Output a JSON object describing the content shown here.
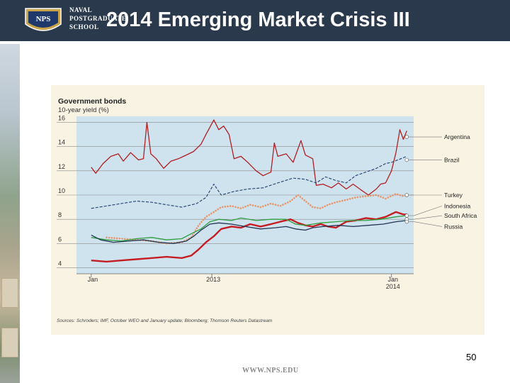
{
  "slide": {
    "title": "2014 Emerging Market Crisis III",
    "school_line1": "NAVAL",
    "school_line2": "POSTGRADUATE",
    "school_line3": "SCHOOL",
    "logo_text": "NPS",
    "page_number": "50",
    "footer_url": "WWW.NPS.EDU"
  },
  "chart_data": {
    "type": "line",
    "title": "Government bonds",
    "subtitle": "10-year yield (%)",
    "source": "Sources: Schroders; IMF, October WEO and January update; Bloomberg; Thomson Reuters Datastream",
    "x_tick_labels": [
      {
        "date": "2012-05-01",
        "label": "Jan",
        "label2": ""
      },
      {
        "date": "2013-01-01",
        "label": "2013",
        "label2": ""
      },
      {
        "date": "2014-01-01",
        "label": "Jan",
        "label2": "2014"
      }
    ],
    "xlim": [
      "2012-04-01",
      "2014-02-15"
    ],
    "ylim": [
      3.5,
      16.5
    ],
    "y_ticks": [
      4,
      6,
      8,
      10,
      12,
      14,
      16
    ],
    "grid": true,
    "colors": {
      "plot_bg": "#cfe3ee",
      "panel_bg": "#f8f3e3",
      "argentina": "#b01f24",
      "brazil": "#1f3f6e",
      "turkey": "#e8966a",
      "indonesia": "#c41e24",
      "south_africa": "#2e9e3e",
      "russia": "#1f3550"
    },
    "series": [
      {
        "name": "Argentina",
        "key": "argentina",
        "style": "solid",
        "width": 1.3,
        "points": [
          [
            "2012-05-01",
            12.3
          ],
          [
            "2012-05-10",
            11.8
          ],
          [
            "2012-05-25",
            12.6
          ],
          [
            "2012-06-10",
            13.2
          ],
          [
            "2012-06-25",
            13.4
          ],
          [
            "2012-07-05",
            12.8
          ],
          [
            "2012-07-20",
            13.5
          ],
          [
            "2012-08-05",
            12.9
          ],
          [
            "2012-08-15",
            13.0
          ],
          [
            "2012-08-22",
            16.0
          ],
          [
            "2012-08-30",
            13.4
          ],
          [
            "2012-09-10",
            13.0
          ],
          [
            "2012-09-25",
            12.2
          ],
          [
            "2012-10-10",
            12.8
          ],
          [
            "2012-10-25",
            13.0
          ],
          [
            "2012-11-10",
            13.3
          ],
          [
            "2012-11-25",
            13.6
          ],
          [
            "2012-12-10",
            14.2
          ],
          [
            "2012-12-20",
            15.0
          ],
          [
            "2012-12-28",
            15.6
          ],
          [
            "2013-01-05",
            16.2
          ],
          [
            "2013-01-15",
            15.4
          ],
          [
            "2013-01-25",
            15.7
          ],
          [
            "2013-02-05",
            15.0
          ],
          [
            "2013-02-15",
            13.0
          ],
          [
            "2013-03-01",
            13.2
          ],
          [
            "2013-03-15",
            12.7
          ],
          [
            "2013-04-01",
            12.0
          ],
          [
            "2013-04-15",
            11.6
          ],
          [
            "2013-05-01",
            11.9
          ],
          [
            "2013-05-08",
            14.3
          ],
          [
            "2013-05-15",
            13.2
          ],
          [
            "2013-06-01",
            13.4
          ],
          [
            "2013-06-15",
            12.7
          ],
          [
            "2013-07-01",
            14.5
          ],
          [
            "2013-07-10",
            13.3
          ],
          [
            "2013-07-25",
            13.0
          ],
          [
            "2013-08-01",
            10.8
          ],
          [
            "2013-08-15",
            10.9
          ],
          [
            "2013-09-01",
            10.6
          ],
          [
            "2013-09-15",
            11.0
          ],
          [
            "2013-10-01",
            10.5
          ],
          [
            "2013-10-15",
            10.9
          ],
          [
            "2013-11-01",
            10.4
          ],
          [
            "2013-11-15",
            10.0
          ],
          [
            "2013-12-01",
            10.5
          ],
          [
            "2013-12-10",
            10.9
          ],
          [
            "2013-12-20",
            11.0
          ],
          [
            "2014-01-01",
            12.0
          ],
          [
            "2014-01-10",
            13.5
          ],
          [
            "2014-01-18",
            15.4
          ],
          [
            "2014-01-25",
            14.6
          ],
          [
            "2014-02-01",
            15.3
          ]
        ]
      },
      {
        "name": "Brazil",
        "key": "brazil",
        "style": "dashed",
        "width": 1.1,
        "points": [
          [
            "2012-05-01",
            8.9
          ],
          [
            "2012-06-01",
            9.1
          ],
          [
            "2012-07-01",
            9.3
          ],
          [
            "2012-08-01",
            9.5
          ],
          [
            "2012-09-01",
            9.4
          ],
          [
            "2012-10-01",
            9.2
          ],
          [
            "2012-11-01",
            9.0
          ],
          [
            "2012-12-01",
            9.3
          ],
          [
            "2012-12-20",
            9.8
          ],
          [
            "2013-01-05",
            10.9
          ],
          [
            "2013-01-20",
            10.0
          ],
          [
            "2013-02-15",
            10.3
          ],
          [
            "2013-03-15",
            10.5
          ],
          [
            "2013-04-15",
            10.6
          ],
          [
            "2013-05-15",
            11.0
          ],
          [
            "2013-06-15",
            11.4
          ],
          [
            "2013-07-10",
            11.3
          ],
          [
            "2013-08-01",
            11.0
          ],
          [
            "2013-08-20",
            11.5
          ],
          [
            "2013-09-10",
            11.2
          ],
          [
            "2013-10-01",
            11.0
          ],
          [
            "2013-10-20",
            11.6
          ],
          [
            "2013-11-10",
            11.9
          ],
          [
            "2013-12-01",
            12.2
          ],
          [
            "2013-12-20",
            12.6
          ],
          [
            "2014-01-01",
            12.7
          ],
          [
            "2014-01-20",
            13.0
          ],
          [
            "2014-02-01",
            13.2
          ]
        ]
      },
      {
        "name": "Turkey",
        "key": "turkey",
        "style": "dotted",
        "width": 2.6,
        "points": [
          [
            "2012-06-01",
            6.5
          ],
          [
            "2012-07-01",
            6.4
          ],
          [
            "2012-08-01",
            6.3
          ],
          [
            "2012-09-01",
            6.2
          ],
          [
            "2012-10-01",
            6.0
          ],
          [
            "2012-11-01",
            6.1
          ],
          [
            "2012-11-20",
            6.5
          ],
          [
            "2012-12-05",
            7.5
          ],
          [
            "2012-12-20",
            8.2
          ],
          [
            "2013-01-05",
            8.6
          ],
          [
            "2013-01-20",
            9.0
          ],
          [
            "2013-02-10",
            9.1
          ],
          [
            "2013-03-01",
            8.9
          ],
          [
            "2013-03-20",
            9.2
          ],
          [
            "2013-04-10",
            9.0
          ],
          [
            "2013-05-01",
            9.3
          ],
          [
            "2013-05-20",
            9.1
          ],
          [
            "2013-06-10",
            9.5
          ],
          [
            "2013-06-25",
            10.0
          ],
          [
            "2013-07-10",
            9.5
          ],
          [
            "2013-07-25",
            9.0
          ],
          [
            "2013-08-10",
            8.9
          ],
          [
            "2013-08-25",
            9.2
          ],
          [
            "2013-09-10",
            9.4
          ],
          [
            "2013-10-01",
            9.6
          ],
          [
            "2013-10-20",
            9.8
          ],
          [
            "2013-11-10",
            9.9
          ],
          [
            "2013-12-01",
            10.0
          ],
          [
            "2013-12-20",
            9.7
          ],
          [
            "2014-01-10",
            10.1
          ],
          [
            "2014-01-25",
            9.9
          ],
          [
            "2014-02-01",
            10.0
          ]
        ]
      },
      {
        "name": "Indonesia",
        "key": "indonesia",
        "style": "solid",
        "width": 2.4,
        "points": [
          [
            "2012-05-01",
            4.6
          ],
          [
            "2012-06-01",
            4.5
          ],
          [
            "2012-07-01",
            4.6
          ],
          [
            "2012-08-01",
            4.7
          ],
          [
            "2012-09-01",
            4.8
          ],
          [
            "2012-10-01",
            4.9
          ],
          [
            "2012-11-01",
            4.8
          ],
          [
            "2012-11-20",
            5.0
          ],
          [
            "2012-12-05",
            5.5
          ],
          [
            "2012-12-20",
            6.1
          ],
          [
            "2013-01-05",
            6.6
          ],
          [
            "2013-01-20",
            7.2
          ],
          [
            "2013-02-10",
            7.4
          ],
          [
            "2013-03-01",
            7.3
          ],
          [
            "2013-03-20",
            7.6
          ],
          [
            "2013-04-10",
            7.4
          ],
          [
            "2013-05-01",
            7.6
          ],
          [
            "2013-05-20",
            7.8
          ],
          [
            "2013-06-10",
            8.0
          ],
          [
            "2013-06-25",
            7.7
          ],
          [
            "2013-07-10",
            7.5
          ],
          [
            "2013-07-25",
            7.4
          ],
          [
            "2013-08-10",
            7.6
          ],
          [
            "2013-08-25",
            7.4
          ],
          [
            "2013-09-10",
            7.3
          ],
          [
            "2013-10-01",
            7.8
          ],
          [
            "2013-10-20",
            7.9
          ],
          [
            "2013-11-10",
            8.1
          ],
          [
            "2013-12-01",
            8.0
          ],
          [
            "2013-12-20",
            8.2
          ],
          [
            "2014-01-10",
            8.6
          ],
          [
            "2014-01-25",
            8.4
          ],
          [
            "2014-02-01",
            8.4
          ]
        ]
      },
      {
        "name": "South Africa",
        "key": "south_africa",
        "style": "solid",
        "width": 1.3,
        "points": [
          [
            "2012-05-01",
            6.5
          ],
          [
            "2012-06-01",
            6.3
          ],
          [
            "2012-07-01",
            6.2
          ],
          [
            "2012-08-01",
            6.4
          ],
          [
            "2012-09-01",
            6.5
          ],
          [
            "2012-10-01",
            6.3
          ],
          [
            "2012-11-01",
            6.4
          ],
          [
            "2012-11-20",
            6.8
          ],
          [
            "2012-12-10",
            7.2
          ],
          [
            "2012-12-28",
            7.8
          ],
          [
            "2013-01-15",
            8.0
          ],
          [
            "2013-02-10",
            7.9
          ],
          [
            "2013-03-01",
            8.1
          ],
          [
            "2013-04-01",
            7.9
          ],
          [
            "2013-05-01",
            8.0
          ],
          [
            "2013-06-01",
            8.0
          ],
          [
            "2013-06-20",
            7.6
          ],
          [
            "2013-07-10",
            7.5
          ],
          [
            "2013-07-25",
            7.6
          ],
          [
            "2013-08-10",
            7.7
          ],
          [
            "2013-09-10",
            7.8
          ],
          [
            "2013-10-10",
            7.9
          ],
          [
            "2013-11-10",
            7.9
          ],
          [
            "2013-12-10",
            8.0
          ],
          [
            "2014-01-10",
            8.2
          ],
          [
            "2014-02-01",
            8.3
          ]
        ]
      },
      {
        "name": "Russia",
        "key": "russia",
        "style": "solid",
        "width": 1.3,
        "points": [
          [
            "2012-05-01",
            6.7
          ],
          [
            "2012-05-20",
            6.3
          ],
          [
            "2012-06-15",
            6.1
          ],
          [
            "2012-07-15",
            6.2
          ],
          [
            "2012-08-15",
            6.3
          ],
          [
            "2012-09-15",
            6.1
          ],
          [
            "2012-10-15",
            6.0
          ],
          [
            "2012-11-10",
            6.2
          ],
          [
            "2012-11-25",
            6.6
          ],
          [
            "2012-12-10",
            7.1
          ],
          [
            "2012-12-28",
            7.6
          ],
          [
            "2013-01-15",
            7.7
          ],
          [
            "2013-02-10",
            7.6
          ],
          [
            "2013-03-10",
            7.4
          ],
          [
            "2013-04-10",
            7.2
          ],
          [
            "2013-05-10",
            7.3
          ],
          [
            "2013-06-01",
            7.4
          ],
          [
            "2013-06-20",
            7.2
          ],
          [
            "2013-07-10",
            7.1
          ],
          [
            "2013-07-25",
            7.3
          ],
          [
            "2013-08-15",
            7.4
          ],
          [
            "2013-09-15",
            7.5
          ],
          [
            "2013-10-15",
            7.4
          ],
          [
            "2013-11-15",
            7.5
          ],
          [
            "2013-12-15",
            7.6
          ],
          [
            "2014-01-10",
            7.8
          ],
          [
            "2014-02-01",
            7.9
          ]
        ]
      }
    ],
    "legend_labels": [
      {
        "key": "argentina",
        "label": "Argentina",
        "anchor": 14.8
      },
      {
        "key": "brazil",
        "label": "Brazil",
        "anchor": 12.9
      },
      {
        "key": "turkey",
        "label": "Turkey",
        "anchor": 10.0
      },
      {
        "key": "indonesia",
        "label": "Indonesia",
        "anchor": 8.3
      },
      {
        "key": "south_africa",
        "label": "South Africa",
        "anchor": 8.0
      },
      {
        "key": "russia",
        "label": "Russia",
        "anchor": 7.8
      }
    ]
  }
}
